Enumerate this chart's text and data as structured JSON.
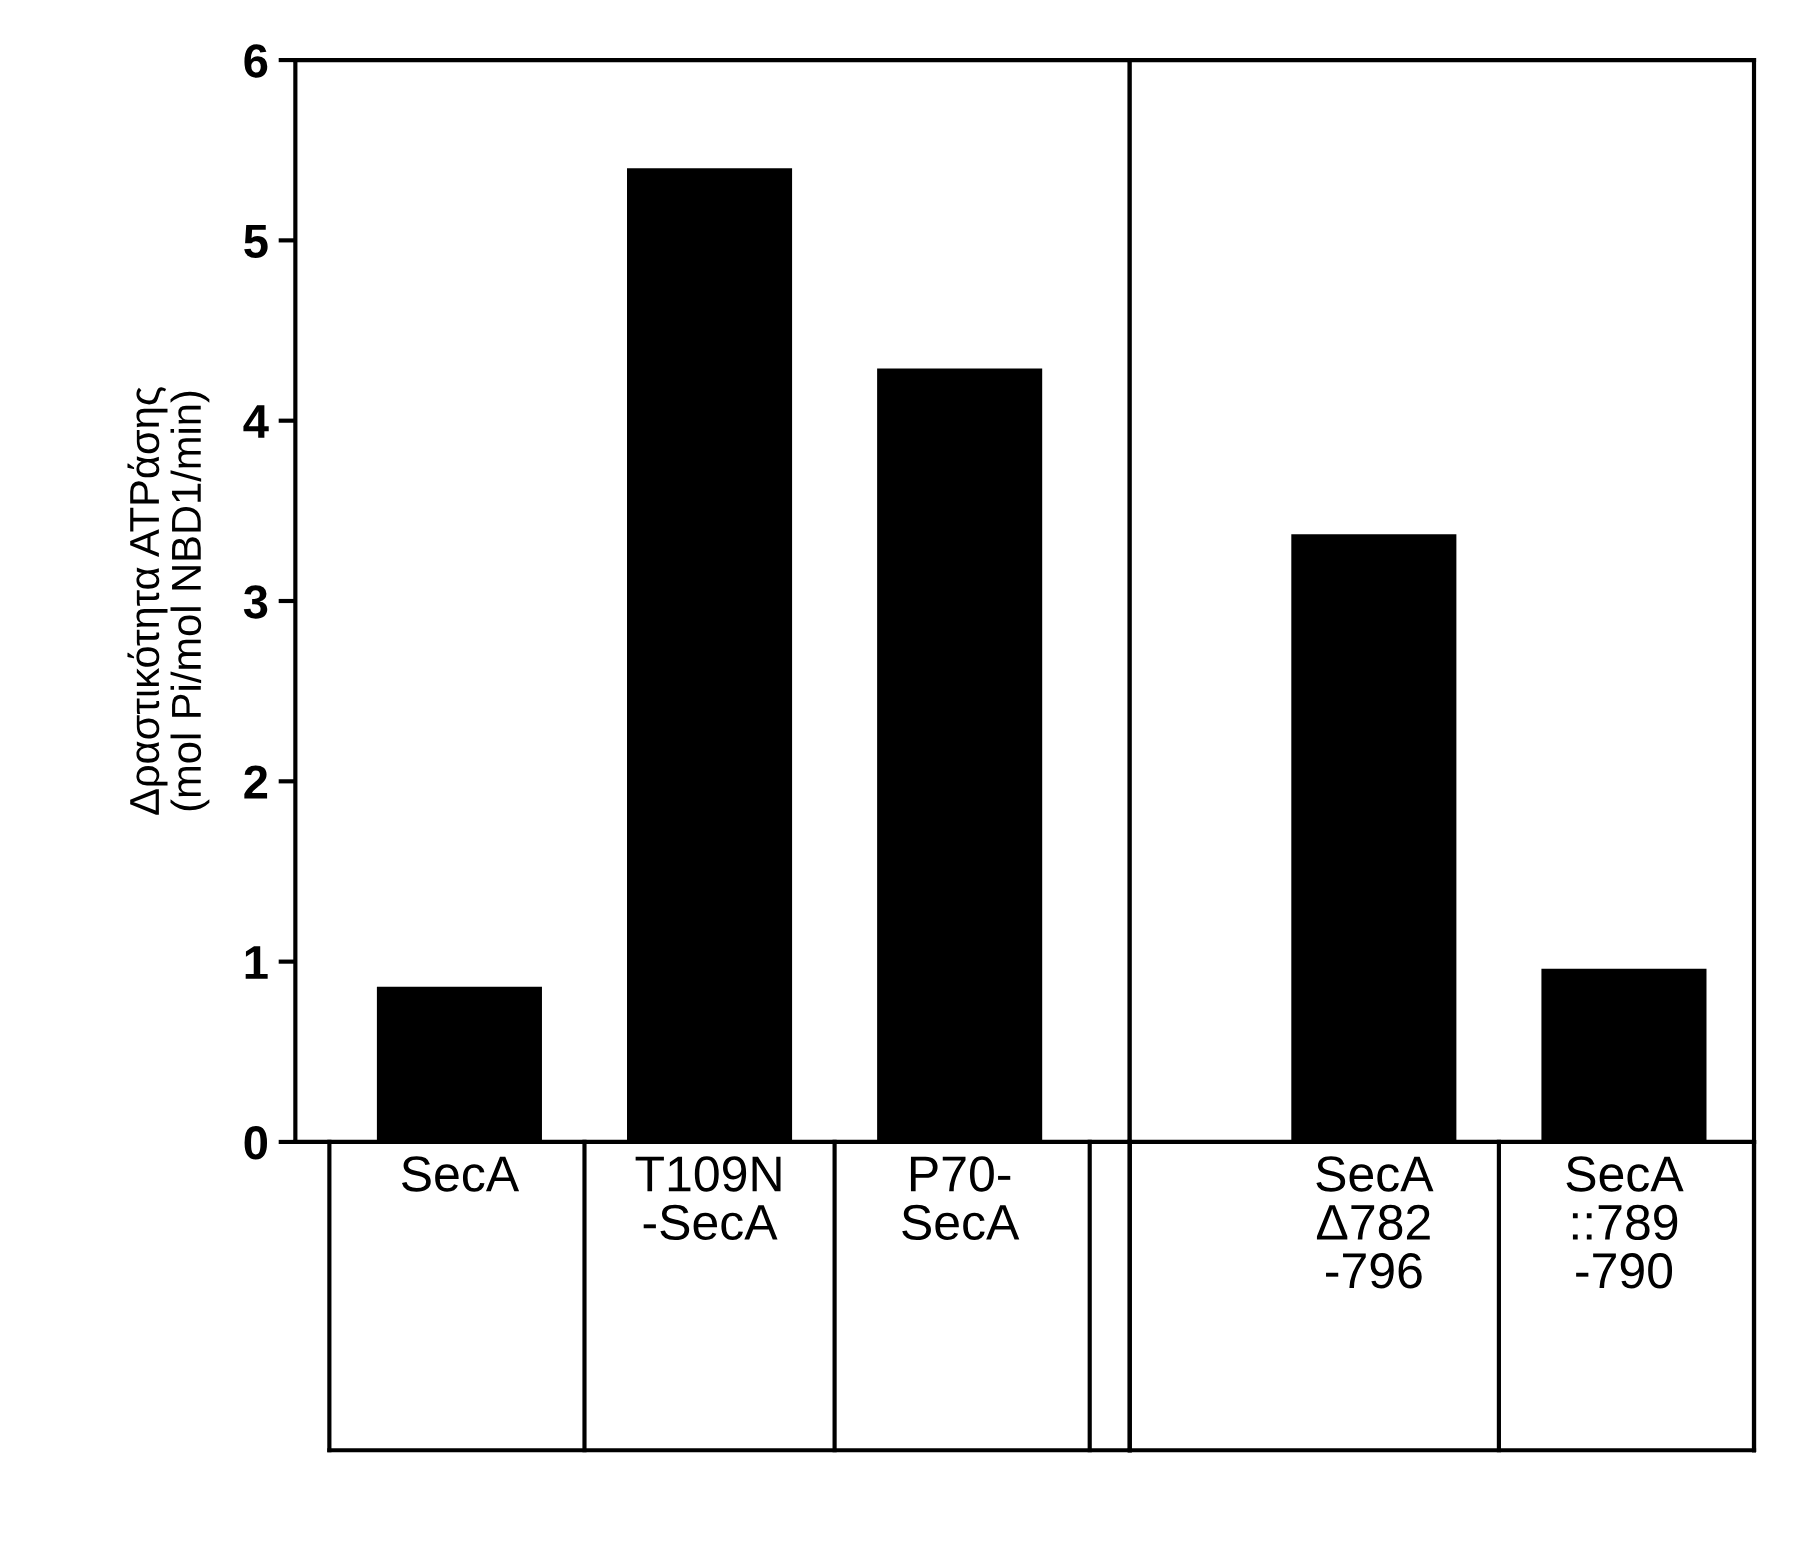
{
  "chart_data": [
    {
      "type": "bar",
      "ylabel": "Δραστικότητα ATPάσης\n(mol Pi/mol NBD1/min)",
      "categories": [
        "SecA",
        "T109N\n-SecA",
        "P70-\nSecA"
      ],
      "values": [
        0.86,
        5.4,
        4.29
      ],
      "color": "#000000",
      "ylim": [
        0,
        6
      ],
      "yticks": [
        0,
        1,
        2,
        3,
        4,
        5,
        6
      ],
      "grid": false
    },
    {
      "type": "bar",
      "categories": [
        "SecA\nΔ782\n-796",
        "SecA\n::789\n-790"
      ],
      "values": [
        3.37,
        0.96
      ],
      "color": "#000000",
      "ylim": [
        0,
        6
      ],
      "tick_labels": false,
      "grid": false
    }
  ]
}
